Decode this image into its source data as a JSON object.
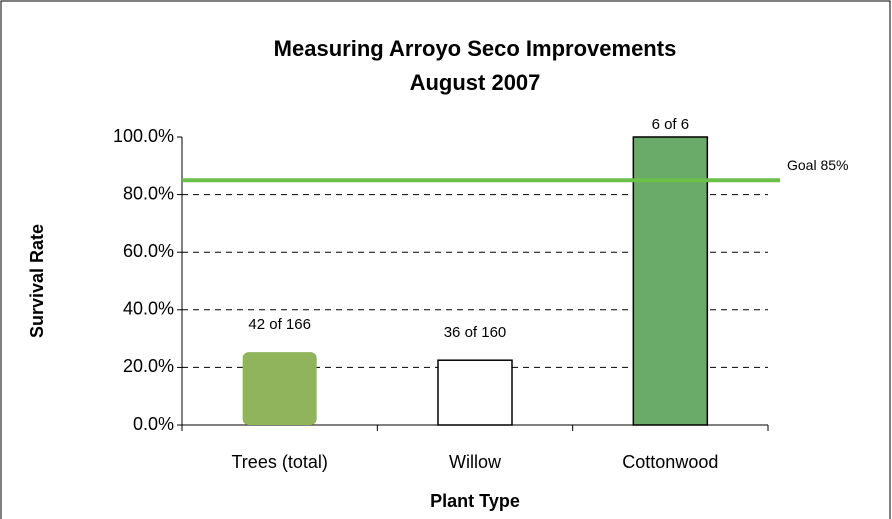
{
  "chart_data": {
    "type": "bar",
    "title": [
      "Measuring Arroyo Seco Improvements",
      "August 2007"
    ],
    "x_label": "Plant Type",
    "y_label": "Survival Rate",
    "categories": [
      "Trees (total)",
      "Willow",
      "Cottonwood"
    ],
    "values": [
      25.3,
      22.5,
      100
    ],
    "value_labels": [
      "42 of 166",
      "36 of 160",
      "6 of 6"
    ],
    "colors": [
      "#8fb45c",
      "#ffffff",
      "#6aab6a"
    ],
    "ylim": [
      0,
      100
    ],
    "yticks": [
      {
        "value": 0,
        "label": "0.0%"
      },
      {
        "value": 20,
        "label": "20.0%"
      },
      {
        "value": 40,
        "label": "40.0%"
      },
      {
        "value": 60,
        "label": "60.0%"
      },
      {
        "value": 80,
        "label": "80.0%"
      },
      {
        "value": 100,
        "label": "100.0%"
      }
    ],
    "grid": true,
    "goal": {
      "value": 85,
      "label": "Goal 85%",
      "color": "#6cc04a"
    }
  }
}
